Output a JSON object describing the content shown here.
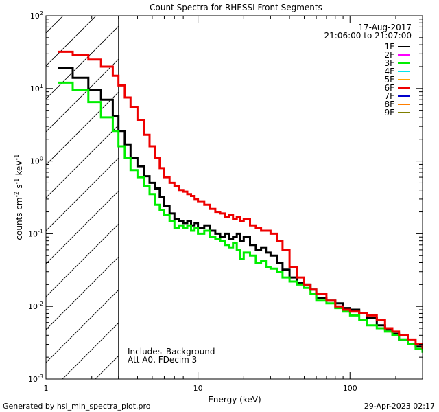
{
  "chart_data": {
    "type": "line",
    "title": "Count Spectra for RHESSI Front Segments",
    "xlabel": "Energy (keV)",
    "ylabel_parts": {
      "base": "counts cm",
      "exp1": "-2",
      "mid1": " s",
      "exp2": "-1",
      "mid2": " keV",
      "exp3": "-1"
    },
    "xscale": "log",
    "yscale": "log",
    "xlim": [
      1,
      300
    ],
    "ylim": [
      0.001,
      100
    ],
    "x_ticks": [
      {
        "value": 1,
        "label": "1"
      },
      {
        "value": 10,
        "label": "10"
      },
      {
        "value": 100,
        "label": "100"
      }
    ],
    "y_ticks": [
      {
        "value": 0.001,
        "base": "10",
        "exp": "-3"
      },
      {
        "value": 0.01,
        "base": "10",
        "exp": "-2"
      },
      {
        "value": 0.1,
        "base": "10",
        "exp": "-1"
      },
      {
        "value": 1,
        "base": "10",
        "exp": "0"
      },
      {
        "value": 10,
        "base": "10",
        "exp": "1"
      },
      {
        "value": 100,
        "base": "10",
        "exp": "2"
      }
    ],
    "date": "17-Aug-2017",
    "time_range": "21:06:00 to 21:07:00",
    "hatch_until_keV": 3,
    "annotations": [
      "Includes_Background",
      "Att A0, FDecim 3"
    ],
    "legend": [
      {
        "name": "1F",
        "color": "#000000"
      },
      {
        "name": "2F",
        "color": "#ff00ff"
      },
      {
        "name": "3F",
        "color": "#00ee00"
      },
      {
        "name": "4F",
        "color": "#00e5ee"
      },
      {
        "name": "5F",
        "color": "#ffa500"
      },
      {
        "name": "6F",
        "color": "#ee0000"
      },
      {
        "name": "7F",
        "color": "#0000cc"
      },
      {
        "name": "8F",
        "color": "#ff7f00"
      },
      {
        "name": "9F",
        "color": "#7f7f00"
      }
    ],
    "series": [
      {
        "name": "1F",
        "color": "#000000",
        "points": [
          [
            1.2,
            19
          ],
          [
            1.35,
            19
          ],
          [
            1.5,
            14
          ],
          [
            1.7,
            14
          ],
          [
            1.9,
            9.5
          ],
          [
            2.1,
            9.5
          ],
          [
            2.3,
            7
          ],
          [
            2.5,
            7
          ],
          [
            2.75,
            4.2
          ],
          [
            3.0,
            2.6
          ],
          [
            3.3,
            1.7
          ],
          [
            3.6,
            1.1
          ],
          [
            4.0,
            0.85
          ],
          [
            4.4,
            0.62
          ],
          [
            4.8,
            0.5
          ],
          [
            5.2,
            0.42
          ],
          [
            5.6,
            0.32
          ],
          [
            6.0,
            0.24
          ],
          [
            6.5,
            0.19
          ],
          [
            7.0,
            0.16
          ],
          [
            7.5,
            0.15
          ],
          [
            8.0,
            0.14
          ],
          [
            8.5,
            0.15
          ],
          [
            9.0,
            0.13
          ],
          [
            9.5,
            0.14
          ],
          [
            10,
            0.12
          ],
          [
            11,
            0.13
          ],
          [
            12,
            0.11
          ],
          [
            13,
            0.1
          ],
          [
            14,
            0.09
          ],
          [
            15,
            0.1
          ],
          [
            16,
            0.085
          ],
          [
            17,
            0.09
          ],
          [
            18,
            0.1
          ],
          [
            19,
            0.08
          ],
          [
            20,
            0.09
          ],
          [
            22,
            0.07
          ],
          [
            24,
            0.06
          ],
          [
            26,
            0.065
          ],
          [
            28,
            0.055
          ],
          [
            30,
            0.05
          ],
          [
            33,
            0.04
          ],
          [
            36,
            0.032
          ],
          [
            40,
            0.025
          ],
          [
            45,
            0.021
          ],
          [
            50,
            0.02
          ],
          [
            55,
            0.017
          ],
          [
            60,
            0.013
          ],
          [
            70,
            0.012
          ],
          [
            80,
            0.011
          ],
          [
            90,
            0.0095
          ],
          [
            100,
            0.009
          ],
          [
            115,
            0.008
          ],
          [
            130,
            0.007
          ],
          [
            150,
            0.0055
          ],
          [
            170,
            0.0048
          ],
          [
            190,
            0.0042
          ],
          [
            210,
            0.0035
          ],
          [
            240,
            0.003
          ],
          [
            270,
            0.0028
          ],
          [
            300,
            0.0025
          ]
        ]
      },
      {
        "name": "3F",
        "color": "#00ee00",
        "points": [
          [
            1.2,
            12
          ],
          [
            1.35,
            12
          ],
          [
            1.5,
            9.5
          ],
          [
            1.7,
            9.5
          ],
          [
            1.9,
            6.5
          ],
          [
            2.1,
            6.5
          ],
          [
            2.3,
            4
          ],
          [
            2.5,
            4
          ],
          [
            2.75,
            2.6
          ],
          [
            3.0,
            1.6
          ],
          [
            3.3,
            1.1
          ],
          [
            3.6,
            0.75
          ],
          [
            4.0,
            0.6
          ],
          [
            4.4,
            0.45
          ],
          [
            4.8,
            0.35
          ],
          [
            5.2,
            0.25
          ],
          [
            5.6,
            0.21
          ],
          [
            6.0,
            0.18
          ],
          [
            6.5,
            0.15
          ],
          [
            7.0,
            0.12
          ],
          [
            7.5,
            0.13
          ],
          [
            8.0,
            0.12
          ],
          [
            8.5,
            0.13
          ],
          [
            9.0,
            0.11
          ],
          [
            9.5,
            0.12
          ],
          [
            10,
            0.1
          ],
          [
            11,
            0.11
          ],
          [
            12,
            0.09
          ],
          [
            13,
            0.085
          ],
          [
            14,
            0.08
          ],
          [
            15,
            0.07
          ],
          [
            16,
            0.065
          ],
          [
            17,
            0.075
          ],
          [
            18,
            0.06
          ],
          [
            19,
            0.045
          ],
          [
            20,
            0.055
          ],
          [
            22,
            0.05
          ],
          [
            24,
            0.04
          ],
          [
            26,
            0.042
          ],
          [
            28,
            0.035
          ],
          [
            30,
            0.033
          ],
          [
            33,
            0.03
          ],
          [
            36,
            0.025
          ],
          [
            40,
            0.022
          ],
          [
            45,
            0.02
          ],
          [
            50,
            0.018
          ],
          [
            55,
            0.015
          ],
          [
            60,
            0.012
          ],
          [
            70,
            0.011
          ],
          [
            80,
            0.0095
          ],
          [
            90,
            0.0085
          ],
          [
            100,
            0.0075
          ],
          [
            115,
            0.0065
          ],
          [
            130,
            0.0055
          ],
          [
            150,
            0.005
          ],
          [
            170,
            0.0045
          ],
          [
            190,
            0.004
          ],
          [
            210,
            0.0035
          ],
          [
            240,
            0.003
          ],
          [
            270,
            0.0026
          ],
          [
            300,
            0.0023
          ]
        ]
      },
      {
        "name": "6F",
        "color": "#ee0000",
        "points": [
          [
            1.2,
            32
          ],
          [
            1.35,
            32
          ],
          [
            1.5,
            29
          ],
          [
            1.7,
            29
          ],
          [
            1.9,
            25
          ],
          [
            2.1,
            25
          ],
          [
            2.3,
            20
          ],
          [
            2.5,
            20
          ],
          [
            2.75,
            15
          ],
          [
            3.0,
            11
          ],
          [
            3.3,
            7.5
          ],
          [
            3.6,
            5.5
          ],
          [
            4.0,
            3.7
          ],
          [
            4.4,
            2.3
          ],
          [
            4.8,
            1.6
          ],
          [
            5.2,
            1.1
          ],
          [
            5.6,
            0.8
          ],
          [
            6.0,
            0.6
          ],
          [
            6.5,
            0.5
          ],
          [
            7.0,
            0.45
          ],
          [
            7.5,
            0.4
          ],
          [
            8.0,
            0.38
          ],
          [
            8.5,
            0.35
          ],
          [
            9.0,
            0.33
          ],
          [
            9.5,
            0.3
          ],
          [
            10,
            0.28
          ],
          [
            11,
            0.25
          ],
          [
            12,
            0.22
          ],
          [
            13,
            0.2
          ],
          [
            14,
            0.19
          ],
          [
            15,
            0.17
          ],
          [
            16,
            0.18
          ],
          [
            17,
            0.16
          ],
          [
            18,
            0.17
          ],
          [
            19,
            0.15
          ],
          [
            20,
            0.16
          ],
          [
            22,
            0.13
          ],
          [
            24,
            0.12
          ],
          [
            26,
            0.11
          ],
          [
            28,
            0.11
          ],
          [
            30,
            0.1
          ],
          [
            33,
            0.08
          ],
          [
            36,
            0.06
          ],
          [
            40,
            0.035
          ],
          [
            45,
            0.025
          ],
          [
            50,
            0.02
          ],
          [
            55,
            0.017
          ],
          [
            60,
            0.015
          ],
          [
            70,
            0.012
          ],
          [
            80,
            0.01
          ],
          [
            90,
            0.009
          ],
          [
            100,
            0.0085
          ],
          [
            115,
            0.008
          ],
          [
            130,
            0.0075
          ],
          [
            150,
            0.0065
          ],
          [
            170,
            0.005
          ],
          [
            190,
            0.0045
          ],
          [
            210,
            0.004
          ],
          [
            240,
            0.0035
          ],
          [
            270,
            0.003
          ],
          [
            300,
            0.0026
          ]
        ]
      }
    ]
  },
  "footer": {
    "generated_by": "Generated by hsi_min_spectra_plot.pro",
    "timestamp": "29-Apr-2023 02:17"
  }
}
